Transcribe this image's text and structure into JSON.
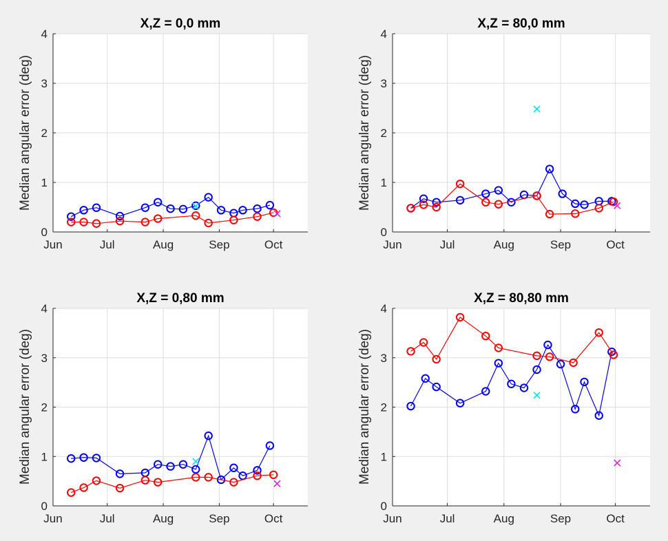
{
  "colors": {
    "background": "#f0f0f0",
    "axes_background": "#ffffff",
    "grid": "#dedede",
    "axis": "#262626",
    "series_a": "#0000ff",
    "series_b": "#ff0000",
    "marker_cyan": "#00e5ee",
    "marker_magenta": "#e020e0"
  },
  "chart_data": [
    {
      "type": "line",
      "title": "X,Z = 0,0 mm",
      "xlabel": "",
      "ylabel": "Median angular error (deg)",
      "xlim": [
        "2000-06-01",
        "2000-10-20"
      ],
      "ylim": [
        0,
        4
      ],
      "yticks": [
        "0",
        "1",
        "2",
        "3",
        "4"
      ],
      "xticks": [
        {
          "label": "Jun",
          "date": "2000-06-01"
        },
        {
          "label": "Jul",
          "date": "2000-07-01"
        },
        {
          "label": "Aug",
          "date": "2000-08-01"
        },
        {
          "label": "Sep",
          "date": "2000-09-01"
        },
        {
          "label": "Oct",
          "date": "2000-10-01"
        }
      ],
      "grid": true,
      "series": [
        {
          "name": "blue",
          "color": "#0000ff",
          "marker": "o",
          "x": [
            "2000-06-11",
            "2000-06-18",
            "2000-06-25",
            "2000-07-08",
            "2000-07-22",
            "2000-07-29",
            "2000-08-05",
            "2000-08-12",
            "2000-08-19",
            "2000-08-26",
            "2000-09-02",
            "2000-09-09",
            "2000-09-14",
            "2000-09-22",
            "2000-09-29"
          ],
          "y": [
            0.31,
            0.44,
            0.49,
            0.32,
            0.49,
            0.6,
            0.47,
            0.46,
            0.53,
            0.7,
            0.44,
            0.38,
            0.44,
            0.47,
            0.54
          ]
        },
        {
          "name": "red",
          "color": "#ff0000",
          "marker": "o",
          "x": [
            "2000-06-11",
            "2000-06-18",
            "2000-06-25",
            "2000-07-08",
            "2000-07-22",
            "2000-07-29",
            "2000-08-19",
            "2000-08-26",
            "2000-09-09",
            "2000-09-22",
            "2000-10-01"
          ],
          "y": [
            0.2,
            0.2,
            0.17,
            0.22,
            0.2,
            0.27,
            0.33,
            0.18,
            0.24,
            0.31,
            0.39
          ]
        }
      ],
      "markers": [
        {
          "date": "2000-08-19",
          "value": 0.52,
          "symbol": "x",
          "color": "#00e5ee"
        },
        {
          "date": "2000-10-03",
          "value": 0.37,
          "symbol": "x",
          "color": "#e020e0"
        }
      ]
    },
    {
      "type": "line",
      "title": "X,Z = 80,0 mm",
      "xlabel": "",
      "ylabel": "Median angular error (deg)",
      "xlim": [
        "2000-06-01",
        "2000-10-20"
      ],
      "ylim": [
        0,
        4
      ],
      "yticks": [
        "0",
        "1",
        "2",
        "3",
        "4"
      ],
      "xticks": [
        {
          "label": "Jun",
          "date": "2000-06-01"
        },
        {
          "label": "Jul",
          "date": "2000-07-01"
        },
        {
          "label": "Aug",
          "date": "2000-08-01"
        },
        {
          "label": "Sep",
          "date": "2000-09-01"
        },
        {
          "label": "Oct",
          "date": "2000-10-01"
        }
      ],
      "grid": true,
      "series": [
        {
          "name": "blue",
          "color": "#0000ff",
          "marker": "o",
          "x": [
            "2000-06-11",
            "2000-06-18",
            "2000-06-25",
            "2000-07-08",
            "2000-07-22",
            "2000-07-29",
            "2000-08-05",
            "2000-08-12",
            "2000-08-19",
            "2000-08-26",
            "2000-09-02",
            "2000-09-09",
            "2000-09-14",
            "2000-09-22",
            "2000-09-29"
          ],
          "y": [
            0.48,
            0.67,
            0.6,
            0.64,
            0.77,
            0.84,
            0.6,
            0.75,
            0.73,
            1.27,
            0.77,
            0.57,
            0.55,
            0.62,
            0.62
          ]
        },
        {
          "name": "red",
          "color": "#ff0000",
          "marker": "o",
          "x": [
            "2000-06-11",
            "2000-06-18",
            "2000-06-25",
            "2000-07-08",
            "2000-07-22",
            "2000-07-29",
            "2000-08-19",
            "2000-08-26",
            "2000-09-09",
            "2000-09-22",
            "2000-09-30"
          ],
          "y": [
            0.48,
            0.55,
            0.5,
            0.97,
            0.6,
            0.56,
            0.73,
            0.36,
            0.37,
            0.48,
            0.61
          ]
        }
      ],
      "markers": [
        {
          "date": "2000-08-19",
          "value": 2.48,
          "symbol": "x",
          "color": "#00e5ee"
        },
        {
          "date": "2000-10-02",
          "value": 0.53,
          "symbol": "x",
          "color": "#e020e0"
        }
      ]
    },
    {
      "type": "line",
      "title": "X,Z = 0,80 mm",
      "xlabel": "",
      "ylabel": "Median angular error (deg)",
      "xlim": [
        "2000-06-01",
        "2000-10-20"
      ],
      "ylim": [
        0,
        4
      ],
      "yticks": [
        "0",
        "1",
        "2",
        "3",
        "4"
      ],
      "xticks": [
        {
          "label": "Jun",
          "date": "2000-06-01"
        },
        {
          "label": "Jul",
          "date": "2000-07-01"
        },
        {
          "label": "Aug",
          "date": "2000-08-01"
        },
        {
          "label": "Sep",
          "date": "2000-09-01"
        },
        {
          "label": "Oct",
          "date": "2000-10-01"
        }
      ],
      "grid": true,
      "series": [
        {
          "name": "blue",
          "color": "#0000ff",
          "marker": "o",
          "x": [
            "2000-06-11",
            "2000-06-18",
            "2000-06-25",
            "2000-07-08",
            "2000-07-22",
            "2000-07-29",
            "2000-08-05",
            "2000-08-12",
            "2000-08-19",
            "2000-08-26",
            "2000-09-02",
            "2000-09-09",
            "2000-09-14",
            "2000-09-22",
            "2000-09-29"
          ],
          "y": [
            0.96,
            0.98,
            0.97,
            0.65,
            0.67,
            0.84,
            0.8,
            0.84,
            0.74,
            1.42,
            0.53,
            0.77,
            0.61,
            0.72,
            1.22
          ]
        },
        {
          "name": "red",
          "color": "#ff0000",
          "marker": "o",
          "x": [
            "2000-06-11",
            "2000-06-18",
            "2000-06-25",
            "2000-07-08",
            "2000-07-22",
            "2000-07-29",
            "2000-08-19",
            "2000-08-26",
            "2000-09-09",
            "2000-09-22",
            "2000-10-01"
          ],
          "y": [
            0.27,
            0.37,
            0.51,
            0.36,
            0.52,
            0.48,
            0.58,
            0.58,
            0.48,
            0.61,
            0.63
          ]
        }
      ],
      "markers": [
        {
          "date": "2000-08-19",
          "value": 0.9,
          "symbol": "x",
          "color": "#00e5ee"
        },
        {
          "date": "2000-10-03",
          "value": 0.45,
          "symbol": "x",
          "color": "#e020e0"
        }
      ]
    },
    {
      "type": "line",
      "title": "X,Z = 80,80 mm",
      "xlabel": "",
      "ylabel": "Median angular error (deg)",
      "xlim": [
        "2000-06-01",
        "2000-10-20"
      ],
      "ylim": [
        0,
        4
      ],
      "yticks": [
        "0",
        "1",
        "2",
        "3",
        "4"
      ],
      "xticks": [
        {
          "label": "Jun",
          "date": "2000-06-01"
        },
        {
          "label": "Jul",
          "date": "2000-07-01"
        },
        {
          "label": "Aug",
          "date": "2000-08-01"
        },
        {
          "label": "Sep",
          "date": "2000-09-01"
        },
        {
          "label": "Oct",
          "date": "2000-10-01"
        }
      ],
      "grid": true,
      "series": [
        {
          "name": "blue",
          "color": "#0000ff",
          "marker": "o",
          "x": [
            "2000-06-11",
            "2000-06-19",
            "2000-06-25",
            "2000-07-08",
            "2000-07-22",
            "2000-07-29",
            "2000-08-05",
            "2000-08-12",
            "2000-08-19",
            "2000-08-25",
            "2000-09-01",
            "2000-09-09",
            "2000-09-14",
            "2000-09-22",
            "2000-09-29"
          ],
          "y": [
            2.02,
            2.58,
            2.41,
            2.08,
            2.32,
            2.89,
            2.47,
            2.39,
            2.76,
            3.26,
            2.87,
            1.96,
            2.51,
            1.83,
            3.12
          ]
        },
        {
          "name": "red",
          "color": "#ff0000",
          "marker": "o",
          "x": [
            "2000-06-11",
            "2000-06-18",
            "2000-06-25",
            "2000-07-08",
            "2000-07-22",
            "2000-07-29",
            "2000-08-19",
            "2000-08-26",
            "2000-09-08",
            "2000-09-22",
            "2000-09-30"
          ],
          "y": [
            3.13,
            3.31,
            2.97,
            3.82,
            3.44,
            3.2,
            3.04,
            3.02,
            2.9,
            3.51,
            3.06
          ]
        }
      ],
      "markers": [
        {
          "date": "2000-08-19",
          "value": 2.24,
          "symbol": "x",
          "color": "#00e5ee"
        },
        {
          "date": "2000-10-02",
          "value": 0.87,
          "symbol": "x",
          "color": "#e020e0"
        }
      ]
    }
  ]
}
